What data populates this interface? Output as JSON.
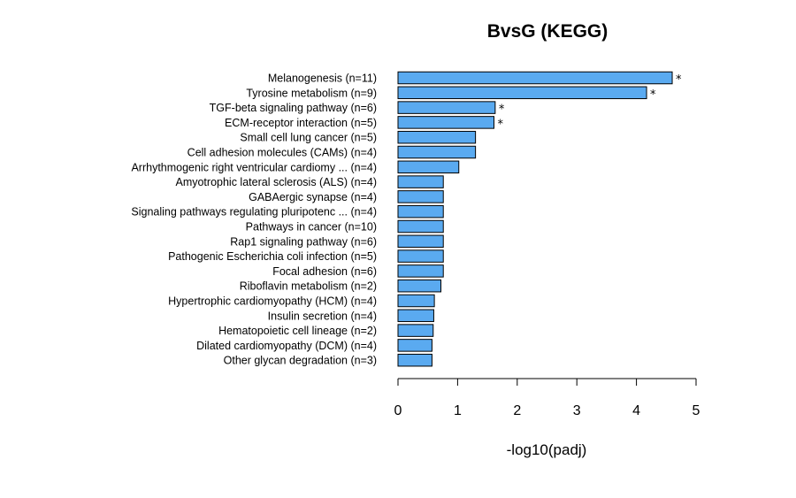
{
  "chart_data": {
    "type": "bar",
    "orientation": "horizontal",
    "title": "BvsG (KEGG)",
    "xlabel": "-log10(padj)",
    "ylabel": "",
    "xlim": [
      0,
      5
    ],
    "xticks": [
      "0",
      "1",
      "2",
      "3",
      "4",
      "5"
    ],
    "bar_color": "#5aaaf0",
    "bar_edge_color": "#000000",
    "grid": false,
    "categories": [
      "Melanogenesis (n=11)",
      "Tyrosine metabolism (n=9)",
      "TGF-beta signaling pathway (n=6)",
      "ECM-receptor interaction (n=5)",
      "Small cell lung cancer (n=5)",
      "Cell adhesion molecules (CAMs) (n=4)",
      "Arrhythmogenic right ventricular cardiomy ... (n=4)",
      "Amyotrophic lateral sclerosis (ALS) (n=4)",
      "GABAergic synapse (n=4)",
      "Signaling pathways regulating pluripotenc ... (n=4)",
      "Pathways in cancer (n=10)",
      "Rap1 signaling pathway (n=6)",
      "Pathogenic Escherichia coli infection (n=5)",
      "Focal adhesion (n=6)",
      "Riboflavin metabolism (n=2)",
      "Hypertrophic cardiomyopathy (HCM) (n=4)",
      "Insulin secretion (n=4)",
      "Hematopoietic cell lineage (n=2)",
      "Dilated cardiomyopathy (DCM) (n=4)",
      "Other glycan degradation (n=3)"
    ],
    "values": [
      4.6,
      4.17,
      1.63,
      1.61,
      1.3,
      1.3,
      1.02,
      0.76,
      0.76,
      0.76,
      0.76,
      0.76,
      0.76,
      0.76,
      0.72,
      0.61,
      0.6,
      0.59,
      0.57,
      0.57
    ],
    "significance_marks": [
      "*",
      "*",
      "*",
      "*",
      "",
      "",
      "",
      "",
      "",
      "",
      "",
      "",
      "",
      "",
      "",
      "",
      "",
      "",
      "",
      ""
    ]
  }
}
